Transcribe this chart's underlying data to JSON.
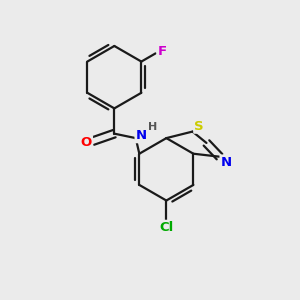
{
  "background_color": "#ebebeb",
  "bond_color": "#1a1a1a",
  "atom_colors": {
    "O": "#ff0000",
    "N": "#0000ee",
    "S": "#cccc00",
    "F": "#cc00cc",
    "Cl": "#00aa00",
    "H": "#555555",
    "C": "#1a1a1a"
  },
  "lw": 1.6,
  "font_size": 9.5
}
